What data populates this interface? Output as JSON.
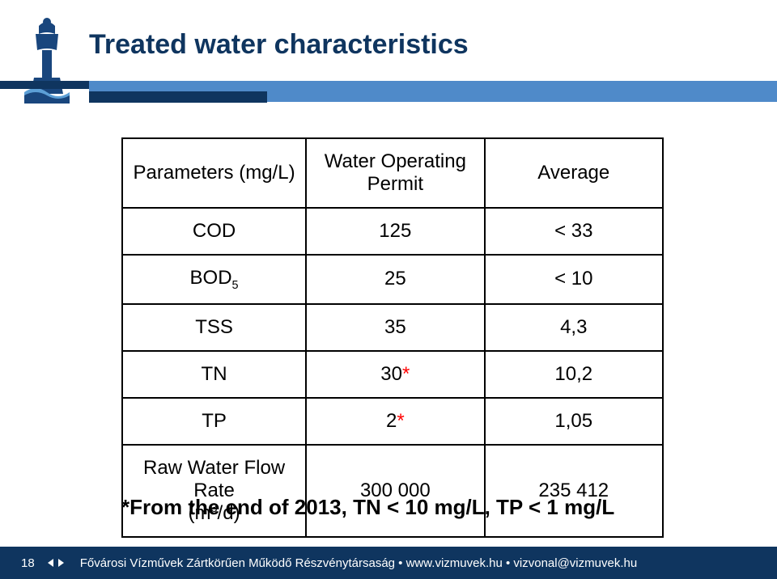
{
  "colors": {
    "title": "#0f355f",
    "stripe_band": "#4f8ac9",
    "stripe_dark": "#0f355f",
    "footer_bg": "#0f355f",
    "footer_text": "#ffffff",
    "border": "#000000",
    "star": "#ff0000",
    "logo_primary": "#19467d",
    "logo_wave": "#5c9fd6"
  },
  "title": "Treated water characteristics",
  "table": {
    "headers": {
      "param": "Parameters (mg/L)",
      "permit": "Water Operating Permit",
      "avg": "Average"
    },
    "rows": [
      {
        "param_html": "COD",
        "permit": "125",
        "avg": "< 33"
      },
      {
        "param_html": "BOD<sub>5</sub>",
        "permit": "25",
        "avg": "< 10"
      },
      {
        "param_html": "TSS",
        "permit": "35",
        "avg": "4,3"
      },
      {
        "param_html": "TN",
        "permit": "30<span class=\"star\">*</span>",
        "avg": "10,2"
      },
      {
        "param_html": "TP",
        "permit": "2<span class=\"star\">*</span>",
        "avg": "1,05"
      },
      {
        "param_html": "Raw Water Flow Rate<br>(m<sup>3</sup>/d)",
        "permit": "300 000",
        "avg": "235 412"
      }
    ]
  },
  "footnote": "*From the end of 2013,  TN < 10 mg/L, TP < 1 mg/L",
  "footer": {
    "page": "18",
    "text": "Fővárosi Vízművek Zártkörűen Működő Részvénytársaság • www.vizmuvek.hu • vizvonal@vizmuvek.hu"
  }
}
